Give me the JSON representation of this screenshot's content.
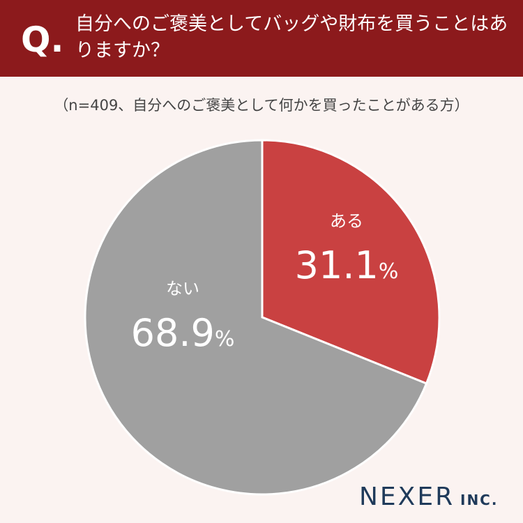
{
  "header": {
    "mark": "Q.",
    "question": "自分へのご褒美としてバッグや財布を買うことはありますか？"
  },
  "chart_data": {
    "type": "pie",
    "subtitle": "（n=409、自分へのご褒美として何かを買ったことがある方）",
    "categories": [
      "ある",
      "ない"
    ],
    "values": [
      31.1,
      68.9
    ],
    "value_labels": [
      "31.1%",
      "68.9%"
    ],
    "colors": [
      "#c94141",
      "#a0a0a0"
    ]
  },
  "footer": {
    "brand": "NEXER",
    "suffix": "INC."
  }
}
